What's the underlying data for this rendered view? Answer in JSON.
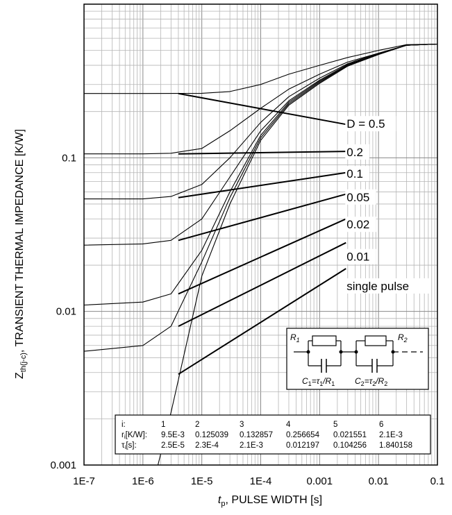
{
  "chart_data": {
    "type": "line",
    "x_scale": "log",
    "y_scale": "log",
    "xlim": [
      1e-07,
      0.1
    ],
    "ylim": [
      0.001,
      1
    ],
    "grid": true,
    "x_ticks": [
      {
        "value": 1e-07,
        "label": "1E-7"
      },
      {
        "value": 1e-06,
        "label": "1E-6"
      },
      {
        "value": 1e-05,
        "label": "1E-5"
      },
      {
        "value": 0.0001,
        "label": "1E-4"
      },
      {
        "value": 0.001,
        "label": "0.001"
      },
      {
        "value": 0.01,
        "label": "0.01"
      },
      {
        "value": 0.1,
        "label": "0.1"
      }
    ],
    "y_ticks": [
      {
        "value": 0.001,
        "label": "0.001"
      },
      {
        "value": 0.01,
        "label": "0.01"
      },
      {
        "value": 0.1,
        "label": "0.1"
      }
    ],
    "xlabel": {
      "symbol": "t",
      "subscript": "p",
      "text": ", PULSE WIDTH [s]"
    },
    "ylabel": {
      "symbol": "Z",
      "subscript": "th(j-c)",
      "text": ", TRANSIENT THERMAL IMPEDANCE [K/W]"
    },
    "series": [
      {
        "name": "D = 0.5",
        "label_x": 0.0028,
        "label_y": 0.165,
        "points": [
          [
            1e-07,
            0.262
          ],
          [
            1e-06,
            0.262
          ],
          [
            1e-05,
            0.263
          ],
          [
            3e-05,
            0.27
          ],
          [
            0.0001,
            0.3
          ],
          [
            0.0003,
            0.35
          ],
          [
            0.001,
            0.4
          ],
          [
            0.003,
            0.45
          ],
          [
            0.01,
            0.5
          ],
          [
            0.03,
            0.545
          ],
          [
            0.1,
            0.55
          ]
        ]
      },
      {
        "name": "0.2",
        "label_x": 0.0028,
        "label_y": 0.108,
        "points": [
          [
            1e-07,
            0.106
          ],
          [
            1e-06,
            0.106
          ],
          [
            3e-06,
            0.107
          ],
          [
            1e-05,
            0.115
          ],
          [
            3e-05,
            0.15
          ],
          [
            0.0001,
            0.21
          ],
          [
            0.0003,
            0.28
          ],
          [
            0.001,
            0.35
          ],
          [
            0.003,
            0.42
          ],
          [
            0.01,
            0.48
          ],
          [
            0.03,
            0.54
          ],
          [
            0.1,
            0.55
          ]
        ]
      },
      {
        "name": "0.1",
        "label_x": 0.0028,
        "label_y": 0.078,
        "points": [
          [
            1e-07,
            0.054
          ],
          [
            1e-06,
            0.054
          ],
          [
            3e-06,
            0.056
          ],
          [
            1e-05,
            0.067
          ],
          [
            3e-05,
            0.1
          ],
          [
            0.0001,
            0.17
          ],
          [
            0.0003,
            0.25
          ],
          [
            0.001,
            0.33
          ],
          [
            0.003,
            0.41
          ],
          [
            0.01,
            0.48
          ],
          [
            0.03,
            0.54
          ],
          [
            0.1,
            0.55
          ]
        ]
      },
      {
        "name": "0.05",
        "label_x": 0.0028,
        "label_y": 0.055,
        "points": [
          [
            1e-07,
            0.027
          ],
          [
            1e-06,
            0.0275
          ],
          [
            3e-06,
            0.029
          ],
          [
            1e-05,
            0.04
          ],
          [
            3e-05,
            0.075
          ],
          [
            0.0001,
            0.15
          ],
          [
            0.0003,
            0.235
          ],
          [
            0.001,
            0.32
          ],
          [
            0.003,
            0.405
          ],
          [
            0.01,
            0.475
          ],
          [
            0.03,
            0.54
          ],
          [
            0.1,
            0.55
          ]
        ]
      },
      {
        "name": "0.02",
        "label_x": 0.0028,
        "label_y": 0.0365,
        "points": [
          [
            1e-07,
            0.011
          ],
          [
            1e-06,
            0.0115
          ],
          [
            3e-06,
            0.013
          ],
          [
            1e-05,
            0.025
          ],
          [
            3e-05,
            0.06
          ],
          [
            0.0001,
            0.14
          ],
          [
            0.0003,
            0.23
          ],
          [
            0.001,
            0.315
          ],
          [
            0.003,
            0.4
          ],
          [
            0.01,
            0.475
          ],
          [
            0.03,
            0.54
          ],
          [
            0.1,
            0.55
          ]
        ]
      },
      {
        "name": "0.01",
        "label_x": 0.0028,
        "label_y": 0.0225,
        "points": [
          [
            1e-07,
            0.0055
          ],
          [
            1e-06,
            0.006
          ],
          [
            3e-06,
            0.008
          ],
          [
            1e-05,
            0.021
          ],
          [
            3e-05,
            0.055
          ],
          [
            0.0001,
            0.135
          ],
          [
            0.0003,
            0.225
          ],
          [
            0.001,
            0.31
          ],
          [
            0.003,
            0.4
          ],
          [
            0.01,
            0.475
          ],
          [
            0.03,
            0.54
          ],
          [
            0.1,
            0.55
          ]
        ]
      },
      {
        "name": "single pulse",
        "label_x": 0.0028,
        "label_y": 0.0145,
        "points": [
          [
            1.8e-06,
            0.001
          ],
          [
            3e-06,
            0.0022
          ],
          [
            1e-05,
            0.017
          ],
          [
            3e-05,
            0.05
          ],
          [
            0.0001,
            0.13
          ],
          [
            0.0003,
            0.22
          ],
          [
            0.001,
            0.305
          ],
          [
            0.003,
            0.395
          ],
          [
            0.01,
            0.47
          ],
          [
            0.03,
            0.54
          ],
          [
            0.1,
            0.55
          ]
        ]
      }
    ],
    "guides": [
      {
        "from": [
          4e-06,
          0.262
        ],
        "to": [
          0.0028,
          0.165
        ]
      },
      {
        "from": [
          4e-06,
          0.106
        ],
        "to": [
          0.0028,
          0.11
        ]
      },
      {
        "from": [
          4e-06,
          0.055
        ],
        "to": [
          0.0028,
          0.08
        ]
      },
      {
        "from": [
          4e-06,
          0.029
        ],
        "to": [
          0.0028,
          0.058
        ]
      },
      {
        "from": [
          4e-06,
          0.013
        ],
        "to": [
          0.0028,
          0.04
        ]
      },
      {
        "from": [
          4e-06,
          0.008
        ],
        "to": [
          0.0028,
          0.028
        ]
      },
      {
        "from": [
          4e-06,
          0.0039
        ],
        "to": [
          0.0028,
          0.019
        ]
      }
    ],
    "circuit": {
      "r1_label": "R",
      "r1_sub": "1",
      "r2_label": "R",
      "r2_sub": "2",
      "c1_label": "C",
      "c1_sub": "1",
      "c1_formula": "=τ",
      "c1_formula_sub": "1",
      "c1_formula_tail": "/R",
      "c1_formula_tail_sub": "1",
      "c2_label": "C",
      "c2_sub": "2",
      "c2_formula": "=τ",
      "c2_formula_sub": "2",
      "c2_formula_tail": "/R",
      "c2_formula_tail_sub": "2"
    },
    "params_table": {
      "headers": [
        "i:",
        "1",
        "2",
        "3",
        "4",
        "5",
        "6"
      ],
      "rows": [
        {
          "label": "r",
          "label_sub": "i",
          "label_tail": "[K/W]:",
          "values": [
            "9.5E-3",
            "0.125039",
            "0.132857",
            "0.256654",
            "0.021551",
            "2.1E-3"
          ]
        },
        {
          "label": "τ",
          "label_sub": "i",
          "label_tail": "[s]:",
          "values": [
            "2.5E-5",
            "2.3E-4",
            "2.1E-3",
            "0.012197",
            "0.104256",
            "1.840158"
          ]
        }
      ]
    }
  }
}
